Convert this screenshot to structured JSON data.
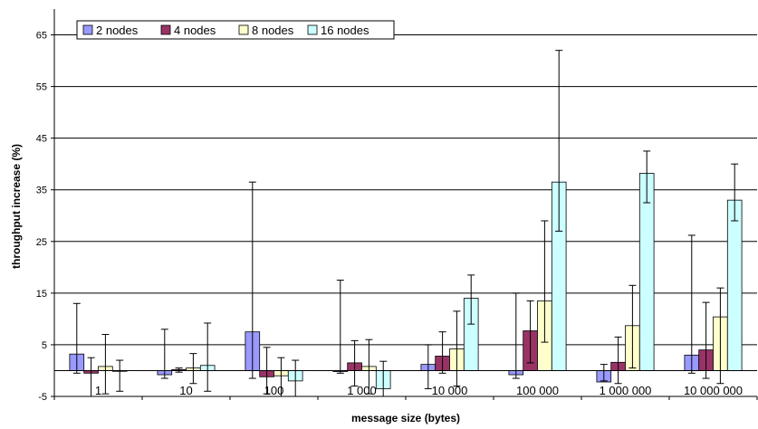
{
  "chart_data": {
    "type": "bar",
    "title": "",
    "xlabel": "message size (bytes)",
    "ylabel": "throughput increase (%)",
    "ylim": [
      -5,
      70
    ],
    "yticks": [
      -5,
      5,
      15,
      25,
      35,
      45,
      55,
      65
    ],
    "grid": true,
    "legend_position": "top-left",
    "categories": [
      "1",
      "10",
      "100",
      "1 000",
      "10 000",
      "100 000",
      "1 000 000",
      "10 000 000"
    ],
    "series": [
      {
        "name": "2 nodes",
        "color": "#9999ff",
        "values": [
          3.2,
          -0.8,
          7.5,
          -0.2,
          1.2,
          -0.8,
          -2.2,
          3.0
        ],
        "error_low": [
          -0.5,
          -1.5,
          -1.5,
          -0.5,
          -3.5,
          -1.5,
          -2.0,
          -0.5
        ],
        "error_high": [
          13.0,
          8.0,
          36.5,
          17.5,
          5.0,
          15.0,
          1.2,
          26.2
        ]
      },
      {
        "name": "4 nodes",
        "color": "#993366",
        "values": [
          -0.5,
          0.2,
          -1.2,
          1.5,
          2.8,
          7.7,
          1.6,
          4.0
        ],
        "error_low": [
          -5.0,
          -0.3,
          -4.5,
          -3.0,
          -0.5,
          1.5,
          -2.5,
          -1.5
        ],
        "error_high": [
          2.5,
          0.5,
          4.5,
          5.8,
          7.5,
          13.5,
          6.5,
          13.2
        ]
      },
      {
        "name": "8 nodes",
        "color": "#ffffcc",
        "values": [
          0.8,
          0.5,
          -1.0,
          0.8,
          4.2,
          13.5,
          8.7,
          10.4
        ],
        "error_low": [
          -4.5,
          -2.5,
          -5.0,
          -4.5,
          -3.0,
          5.5,
          0.5,
          -2.5
        ],
        "error_high": [
          7.0,
          3.3,
          2.5,
          6.0,
          11.5,
          29.0,
          16.5,
          16.0
        ]
      },
      {
        "name": "16 nodes",
        "color": "#ccffff",
        "values": [
          -0.1,
          1.0,
          -2.0,
          -3.5,
          14.0,
          36.5,
          38.2,
          33.0
        ],
        "error_low": [
          -4.0,
          -4.0,
          -5.0,
          -5.0,
          9.0,
          27.0,
          32.5,
          29.0
        ],
        "error_high": [
          2.0,
          9.2,
          2.0,
          1.8,
          18.5,
          62.0,
          42.5,
          40.0
        ]
      }
    ]
  }
}
